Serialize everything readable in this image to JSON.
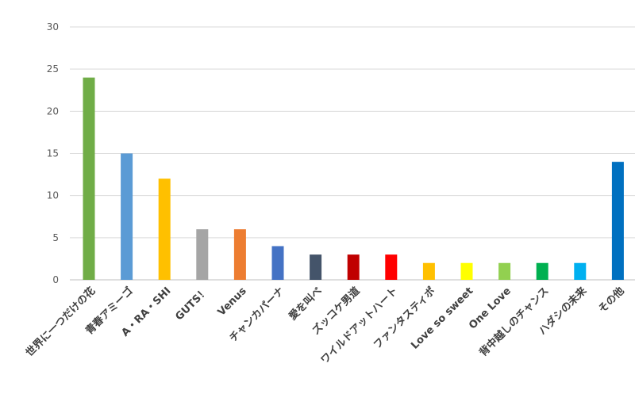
{
  "chart_data": {
    "type": "bar",
    "title": "",
    "xlabel": "",
    "ylabel": "",
    "ylim": [
      0,
      30
    ],
    "yticks": [
      0,
      5,
      10,
      15,
      20,
      25,
      30
    ],
    "grid": true,
    "legend": "none",
    "categories": [
      "世界に一つだけの花",
      "青春アミーゴ",
      "A・RA・SHI",
      "GUTS！",
      "Venus",
      "チャンカパーナ",
      "愛を叫べ",
      "ズッコケ男道",
      "ワイルドアットハート",
      "ファンタスティポ",
      "Love so sweet",
      "One Love",
      "背中越しのチャンス",
      "ハダシの未来",
      "その他"
    ],
    "values": [
      24,
      15,
      12,
      6,
      6,
      4,
      3,
      3,
      3,
      2,
      2,
      2,
      2,
      2,
      14
    ],
    "colors": [
      "#70ad47",
      "#5b9bd5",
      "#ffc000",
      "#a5a5a5",
      "#ed7d31",
      "#4472c4",
      "#44546a",
      "#c00000",
      "#ff0000",
      "#ffc000",
      "#ffff00",
      "#92d050",
      "#00b050",
      "#00b0f0",
      "#0070c0"
    ]
  }
}
